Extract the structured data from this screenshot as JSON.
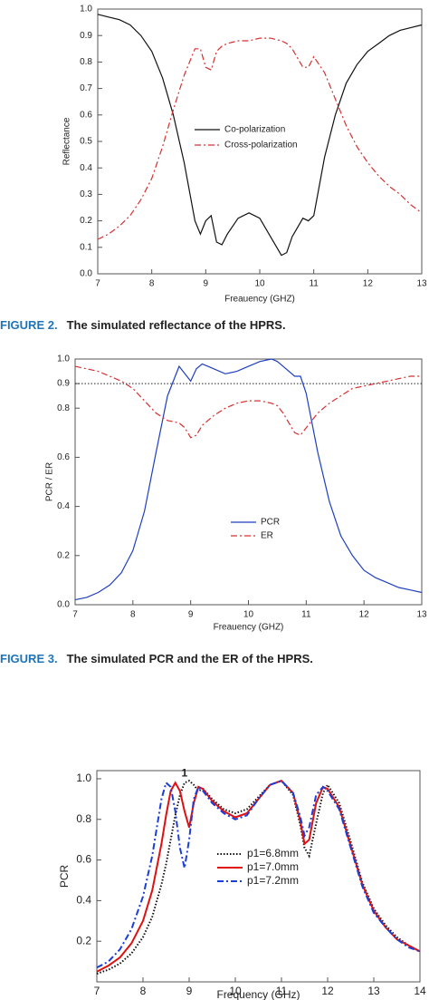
{
  "captions": [
    {
      "label": "FIGURE 2.",
      "text": "The simulated reflectance of the HPRS."
    },
    {
      "label": "FIGURE 3.",
      "text": "The simulated PCR and the ER of the HPRS."
    }
  ],
  "chart_data": [
    {
      "type": "line",
      "xlabel": "Freauency (GHZ)",
      "ylabel": "Reflectance",
      "x": [
        7,
        7.2,
        7.4,
        7.6,
        7.8,
        8.0,
        8.2,
        8.4,
        8.6,
        8.8,
        8.9,
        9.0,
        9.1,
        9.2,
        9.3,
        9.4,
        9.6,
        9.8,
        10.0,
        10.2,
        10.4,
        10.5,
        10.6,
        10.8,
        10.9,
        11.0,
        11.2,
        11.4,
        11.6,
        11.8,
        12.0,
        12.2,
        12.4,
        12.6,
        12.8,
        13
      ],
      "series": [
        {
          "name": "Co-polarization",
          "color": "#111111",
          "style": "solid",
          "values": [
            0.98,
            0.97,
            0.96,
            0.94,
            0.9,
            0.84,
            0.74,
            0.6,
            0.42,
            0.2,
            0.15,
            0.2,
            0.22,
            0.12,
            0.11,
            0.15,
            0.21,
            0.23,
            0.21,
            0.14,
            0.07,
            0.08,
            0.14,
            0.21,
            0.2,
            0.22,
            0.44,
            0.6,
            0.72,
            0.79,
            0.84,
            0.87,
            0.9,
            0.92,
            0.93,
            0.94
          ]
        },
        {
          "name": "Cross-polarization",
          "color": "#d63030",
          "style": "dashdot",
          "values": [
            0.13,
            0.15,
            0.18,
            0.22,
            0.28,
            0.36,
            0.48,
            0.62,
            0.75,
            0.85,
            0.85,
            0.78,
            0.77,
            0.84,
            0.86,
            0.87,
            0.88,
            0.88,
            0.89,
            0.89,
            0.88,
            0.87,
            0.85,
            0.78,
            0.78,
            0.82,
            0.76,
            0.66,
            0.56,
            0.48,
            0.42,
            0.37,
            0.33,
            0.3,
            0.26,
            0.23
          ]
        }
      ],
      "xlim": [
        7,
        13
      ],
      "xticks": [
        7,
        8,
        9,
        10,
        11,
        12,
        13
      ],
      "ylim": [
        0,
        1.0
      ],
      "yticks": [
        {
          "value": 0,
          "label": "0.0"
        },
        0.1,
        0.2,
        0.3,
        0.4,
        0.5,
        0.6,
        0.7,
        0.8,
        0.9,
        {
          "value": 1,
          "label": "1.0"
        }
      ]
    },
    {
      "type": "line",
      "xlabel": "Freauency (GHZ)",
      "ylabel": "PCR / ER",
      "reference_line": 0.9,
      "x": [
        7,
        7.2,
        7.4,
        7.6,
        7.8,
        8.0,
        8.2,
        8.4,
        8.6,
        8.8,
        8.9,
        9.0,
        9.1,
        9.2,
        9.3,
        9.4,
        9.6,
        9.8,
        10.0,
        10.2,
        10.4,
        10.5,
        10.6,
        10.8,
        10.9,
        11.0,
        11.2,
        11.4,
        11.6,
        11.8,
        12.0,
        12.2,
        12.4,
        12.6,
        12.8,
        13
      ],
      "series": [
        {
          "name": "PCR",
          "color": "#1f3fbf",
          "style": "solid",
          "values": [
            0.02,
            0.03,
            0.05,
            0.08,
            0.13,
            0.22,
            0.38,
            0.62,
            0.85,
            0.97,
            0.94,
            0.91,
            0.96,
            0.98,
            0.97,
            0.96,
            0.94,
            0.95,
            0.97,
            0.99,
            1.0,
            0.99,
            0.97,
            0.93,
            0.93,
            0.86,
            0.62,
            0.42,
            0.28,
            0.2,
            0.14,
            0.11,
            0.09,
            0.07,
            0.06,
            0.05
          ]
        },
        {
          "name": "ER",
          "color": "#d63030",
          "style": "dashdot",
          "values": [
            0.97,
            0.96,
            0.95,
            0.93,
            0.91,
            0.88,
            0.83,
            0.78,
            0.75,
            0.74,
            0.72,
            0.68,
            0.69,
            0.73,
            0.75,
            0.77,
            0.8,
            0.82,
            0.83,
            0.83,
            0.82,
            0.81,
            0.78,
            0.7,
            0.69,
            0.72,
            0.78,
            0.82,
            0.85,
            0.88,
            0.89,
            0.9,
            0.91,
            0.92,
            0.93,
            0.93
          ]
        }
      ],
      "xlim": [
        7,
        13
      ],
      "xticks": [
        7,
        8,
        9,
        10,
        11,
        12,
        13
      ],
      "ylim": [
        0,
        1.0
      ],
      "yticks": [
        {
          "value": 0,
          "label": "0.0"
        },
        0.2,
        0.4,
        0.6,
        0.8,
        0.9,
        {
          "value": 1,
          "label": "1.0"
        }
      ]
    },
    {
      "type": "line",
      "xlabel": "Frequency (GHz)",
      "ylabel": "PCR",
      "annotation": "1",
      "x": [
        7,
        7.25,
        7.5,
        7.75,
        8,
        8.2,
        8.4,
        8.5,
        8.6,
        8.7,
        8.8,
        8.9,
        9,
        9.1,
        9.2,
        9.3,
        9.5,
        9.75,
        10,
        10.25,
        10.5,
        10.75,
        11,
        11.25,
        11.4,
        11.5,
        11.6,
        11.75,
        11.9,
        12,
        12.25,
        12.5,
        12.75,
        13,
        13.25,
        13.5,
        13.75,
        14
      ],
      "series": [
        {
          "name": "p1=6.8mm",
          "color": "#111111",
          "style": "dotted",
          "values": [
            0.04,
            0.06,
            0.09,
            0.14,
            0.22,
            0.32,
            0.48,
            0.58,
            0.7,
            0.82,
            0.92,
            0.98,
            0.99,
            0.97,
            0.94,
            0.95,
            0.9,
            0.85,
            0.83,
            0.85,
            0.91,
            0.97,
            0.99,
            0.92,
            0.78,
            0.66,
            0.62,
            0.78,
            0.93,
            0.97,
            0.88,
            0.69,
            0.49,
            0.36,
            0.28,
            0.22,
            0.18,
            0.15
          ]
        },
        {
          "name": "p1=7.0mm",
          "color": "#e01010",
          "style": "solid",
          "values": [
            0.05,
            0.08,
            0.12,
            0.19,
            0.3,
            0.45,
            0.68,
            0.82,
            0.94,
            0.98,
            0.94,
            0.84,
            0.76,
            0.88,
            0.96,
            0.95,
            0.89,
            0.84,
            0.81,
            0.83,
            0.9,
            0.97,
            0.99,
            0.93,
            0.8,
            0.68,
            0.7,
            0.88,
            0.96,
            0.95,
            0.86,
            0.67,
            0.48,
            0.35,
            0.27,
            0.21,
            0.18,
            0.15
          ]
        },
        {
          "name": "p1=7.2mm",
          "color": "#1a3fd6",
          "style": "dashdot",
          "values": [
            0.07,
            0.1,
            0.16,
            0.26,
            0.42,
            0.62,
            0.9,
            0.98,
            0.96,
            0.84,
            0.66,
            0.56,
            0.7,
            0.9,
            0.96,
            0.94,
            0.88,
            0.83,
            0.8,
            0.82,
            0.9,
            0.97,
            0.99,
            0.93,
            0.82,
            0.72,
            0.76,
            0.92,
            0.96,
            0.94,
            0.85,
            0.66,
            0.47,
            0.34,
            0.27,
            0.21,
            0.17,
            0.15
          ]
        }
      ],
      "xlim": [
        7,
        14
      ],
      "xticks": [
        7,
        8,
        9,
        10,
        11,
        12,
        13,
        14
      ],
      "ylim": [
        0,
        1.04
      ],
      "yticks": [
        0.2,
        0.4,
        0.6,
        0.8,
        {
          "value": 1,
          "label": "1.0"
        }
      ]
    }
  ]
}
